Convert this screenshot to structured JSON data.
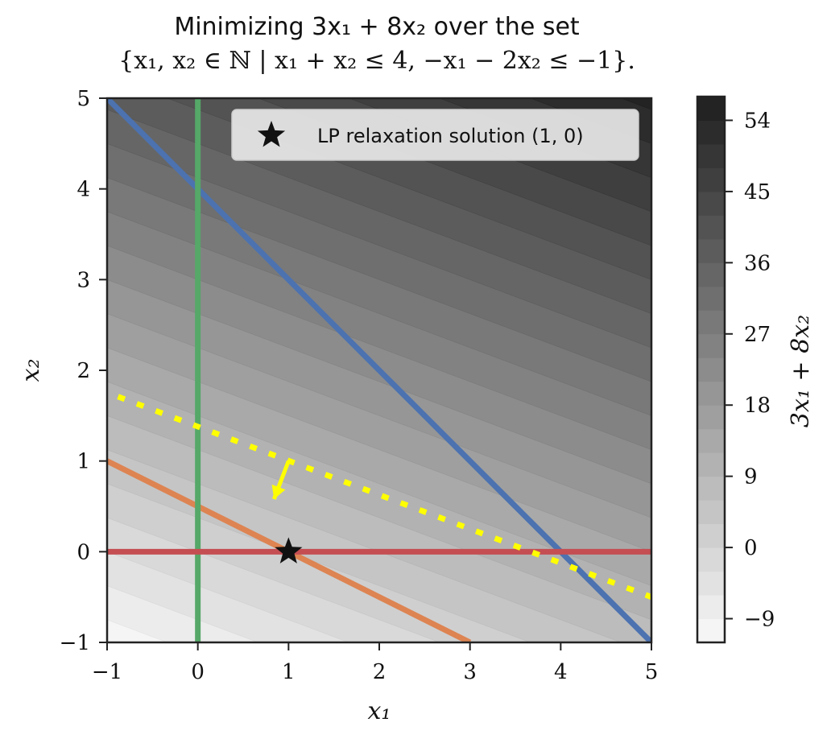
{
  "chart_data": {
    "type": "contour",
    "title_lines": [
      "Minimizing 3x₁ + 8x₂ over the set",
      "{x₁, x₂ ∈ ℕ | x₁ + x₂ ≤ 4, −x₁ − 2x₂ ≤ −1}."
    ],
    "xlabel": "x₁",
    "ylabel": "x₂",
    "xlim": [
      -1,
      5
    ],
    "ylim": [
      -1,
      5
    ],
    "x_ticks": [
      -1,
      0,
      1,
      2,
      3,
      4,
      5
    ],
    "x_tick_labels": [
      "−1",
      "0",
      "1",
      "2",
      "3",
      "4",
      "5"
    ],
    "y_ticks": [
      -1,
      0,
      1,
      2,
      3,
      4,
      5
    ],
    "y_tick_labels": [
      "−1",
      "0",
      "1",
      "2",
      "3",
      "4",
      "5"
    ],
    "objective": {
      "c1": 3,
      "c2": 8
    },
    "colorbar": {
      "label": "3x₁ + 8x₂",
      "range": [
        -12,
        57
      ],
      "ticks": [
        -9,
        0,
        9,
        18,
        27,
        36,
        45,
        54
      ],
      "tick_labels": [
        "−9",
        "0",
        "9",
        "18",
        "27",
        "36",
        "45",
        "54"
      ],
      "level_step": 3,
      "color_low": "#fafafa",
      "color_high": "#1e1e1e"
    },
    "lines": [
      {
        "name": "x1 + x2 = 4",
        "color": "#4c72b0",
        "points": [
          [
            -1,
            5
          ],
          [
            5,
            -1
          ]
        ]
      },
      {
        "name": "x1 + 2x2 = 1",
        "color": "#dd8452",
        "points": [
          [
            -1,
            1
          ],
          [
            3,
            -1
          ]
        ]
      },
      {
        "name": "x1 = 0",
        "color": "#55a868",
        "points": [
          [
            0,
            -1
          ],
          [
            0,
            5
          ]
        ]
      },
      {
        "name": "x2 = 0",
        "color": "#c44e52",
        "points": [
          [
            -1,
            0
          ],
          [
            5,
            0
          ]
        ]
      }
    ],
    "objective_line": {
      "color": "#ffff00",
      "points": [
        [
          -0.88,
          1.71
        ],
        [
          5,
          -0.5
        ]
      ],
      "arrow_from": [
        1,
        1
      ],
      "arrow_to": [
        0.84,
        0.58
      ]
    },
    "solution_point": {
      "x": 1,
      "y": 0
    },
    "legend": {
      "label": "LP relaxation solution (1, 0)",
      "position": "upper right"
    }
  }
}
